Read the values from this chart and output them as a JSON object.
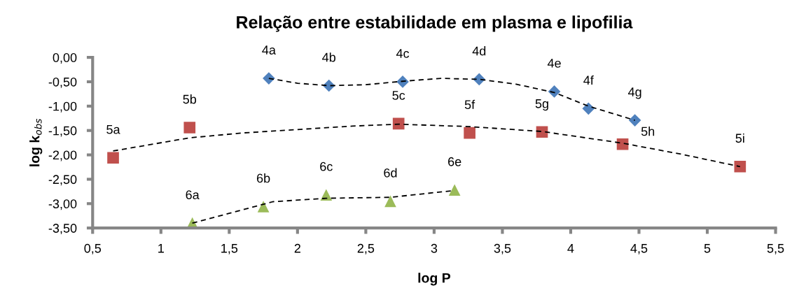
{
  "chart_data": {
    "type": "scatter",
    "title": "Relação entre estabilidade em plasma e lipofilia",
    "xlabel": "log P",
    "ylabel": "log k$_{obs}$",
    "xlim": [
      0.5,
      5.5
    ],
    "ylim": [
      -3.5,
      0
    ],
    "xticks": [
      {
        "value": 0.5,
        "label": "0,5"
      },
      1,
      {
        "value": 1.5,
        "label": "1,5"
      },
      2,
      {
        "value": 2.5,
        "label": "2,5"
      },
      3,
      {
        "value": 3.5,
        "label": "3,5"
      },
      4,
      {
        "value": 4.5,
        "label": "4,5"
      },
      5,
      {
        "value": 5.5,
        "label": "5,5"
      }
    ],
    "yticks": [
      {
        "value": 0,
        "label": "0,00"
      },
      {
        "value": -0.5,
        "label": "-0,50"
      },
      {
        "value": -1,
        "label": "-1,00"
      },
      {
        "value": -1.5,
        "label": "-1,50"
      },
      {
        "value": -2,
        "label": "-2,00"
      },
      {
        "value": -2.5,
        "label": "-2,50"
      },
      {
        "value": -3,
        "label": "-3,00"
      },
      {
        "value": -3.5,
        "label": "-3,50"
      }
    ],
    "grid": false,
    "legend": false,
    "series": [
      {
        "type": "line",
        "color": "#000000",
        "line_style": "dashed",
        "marker": "none",
        "x": [
          1.79,
          2.0,
          2.23,
          2.5,
          2.77,
          3.05,
          3.33,
          3.6,
          3.88,
          4.13,
          4.47
        ],
        "values": [
          -0.43,
          -0.53,
          -0.58,
          -0.56,
          -0.49,
          -0.43,
          -0.45,
          -0.55,
          -0.72,
          -1.0,
          -1.29
        ]
      },
      {
        "type": "line",
        "color": "#000000",
        "line_style": "dashed",
        "marker": "none",
        "x": [
          0.65,
          1.21,
          1.6,
          2.0,
          2.4,
          2.74,
          3.26,
          3.79,
          4.38,
          4.8,
          5.24
        ],
        "values": [
          -1.92,
          -1.65,
          -1.55,
          -1.48,
          -1.41,
          -1.37,
          -1.42,
          -1.52,
          -1.76,
          -1.98,
          -2.24
        ]
      },
      {
        "type": "line",
        "color": "#000000",
        "line_style": "dashed",
        "marker": "none",
        "x": [
          1.23,
          1.5,
          1.82,
          2.21,
          2.68,
          3.15
        ],
        "values": [
          -3.4,
          -3.2,
          -2.96,
          -2.89,
          -2.87,
          -2.73
        ]
      },
      {
        "color": "#4f81bd",
        "marker": "diamond",
        "x": [
          1.79,
          2.23,
          2.77,
          3.33,
          3.88,
          4.13,
          4.47
        ],
        "values": [
          -0.43,
          -0.58,
          -0.5,
          -0.45,
          -0.7,
          -1.05,
          -1.29
        ]
      },
      {
        "color": "#c0504d",
        "marker": "square",
        "x": [
          0.65,
          1.21,
          2.74,
          3.26,
          3.79,
          4.38,
          5.24
        ],
        "values": [
          -2.06,
          -1.44,
          -1.36,
          -1.55,
          -1.53,
          -1.78,
          -2.24
        ]
      },
      {
        "color": "#9bbb59",
        "marker": "triangle",
        "x": [
          1.23,
          1.75,
          2.21,
          2.68,
          3.15
        ],
        "values": [
          -3.4,
          -3.06,
          -2.82,
          -2.95,
          -2.72
        ]
      }
    ],
    "annotations": [
      {
        "text": "4a",
        "x": 1.79,
        "y": -0.43
      },
      {
        "text": "4b",
        "x": 2.23,
        "y": -0.58
      },
      {
        "text": "4c",
        "x": 2.77,
        "y": -0.5
      },
      {
        "text": "4d",
        "x": 3.33,
        "y": -0.45
      },
      {
        "text": "4e",
        "x": 3.88,
        "y": -0.7
      },
      {
        "text": "4f",
        "x": 4.13,
        "y": -1.05
      },
      {
        "text": "4g",
        "x": 4.47,
        "y": -1.29
      },
      {
        "text": "5a",
        "x": 0.65,
        "y": -2.06
      },
      {
        "text": "5b",
        "x": 1.21,
        "y": -1.44
      },
      {
        "text": "5c",
        "x": 2.74,
        "y": -1.36
      },
      {
        "text": "5f",
        "x": 3.26,
        "y": -1.55
      },
      {
        "text": "5g",
        "x": 3.79,
        "y": -1.53
      },
      {
        "text": "5h",
        "x": 4.38,
        "y": -1.78
      },
      {
        "text": "5i",
        "x": 5.24,
        "y": -2.24
      },
      {
        "text": "6a",
        "x": 1.23,
        "y": -3.4
      },
      {
        "text": "6b",
        "x": 1.75,
        "y": -3.06
      },
      {
        "text": "6c",
        "x": 2.21,
        "y": -2.82
      },
      {
        "text": "6d",
        "x": 2.68,
        "y": -2.95
      },
      {
        "text": "6e",
        "x": 3.15,
        "y": -2.72
      }
    ]
  }
}
